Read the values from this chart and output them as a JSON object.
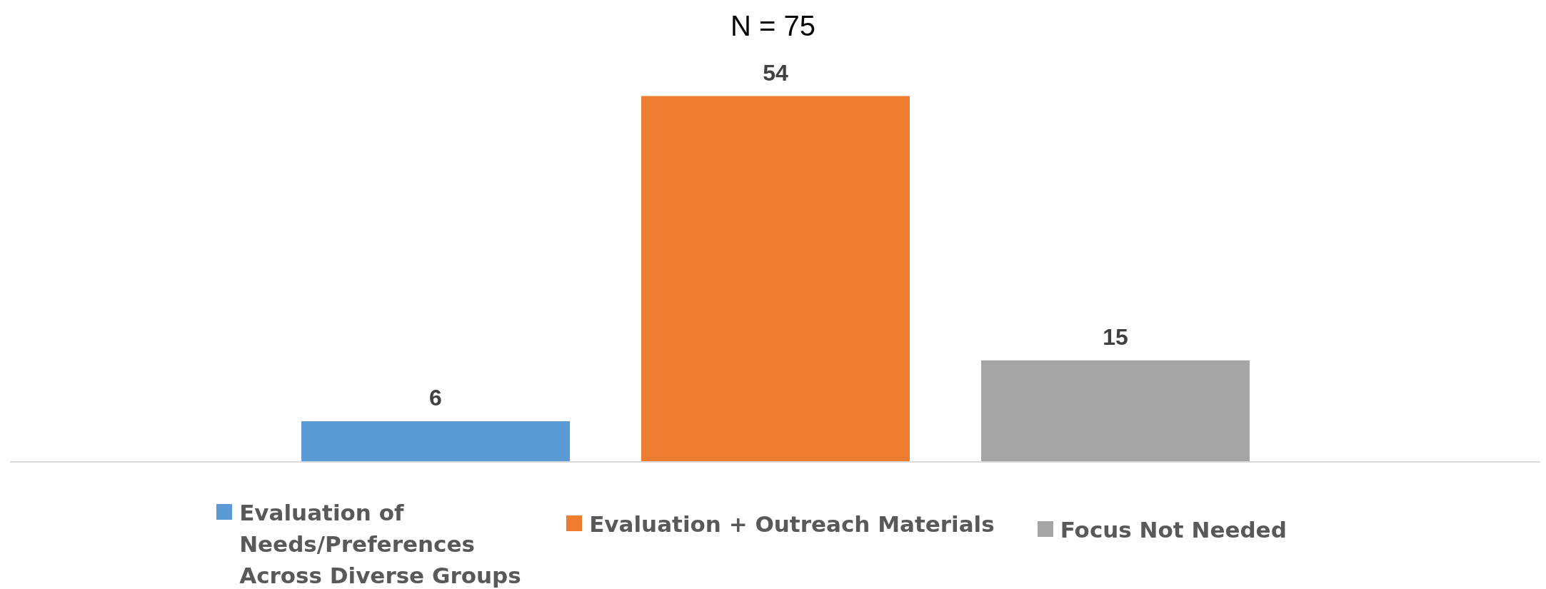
{
  "chart_data": {
    "type": "bar",
    "title": "N = 75",
    "categories": [
      null
    ],
    "series": [
      {
        "name": "Evaluation of Needs/Preferences Across Diverse Groups",
        "color": "#5b9bd5",
        "values": [
          6
        ]
      },
      {
        "name": "Evaluation + Outreach Materials",
        "color": "#ed7d31",
        "values": [
          54
        ]
      },
      {
        "name": "Focus Not Needed",
        "color": "#a5a5a5",
        "values": [
          15
        ]
      }
    ],
    "data_labels": true,
    "legend": "bottom",
    "grid": false
  }
}
